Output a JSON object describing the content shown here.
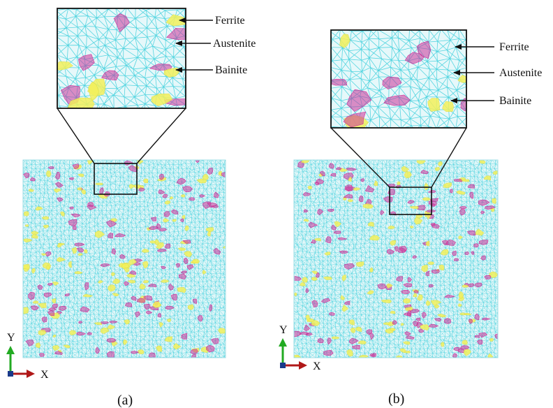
{
  "colors": {
    "ferrite": "#55d5e0",
    "austenite": "#cc3399",
    "bainite": "#f2f05a",
    "frame": "#222222",
    "axis_y": "#22aa22",
    "axis_x": "#b01818",
    "axis_origin": "#1a3a8a"
  },
  "panels": [
    {
      "id": "a",
      "caption": "(a)",
      "labels": {
        "ferrite": "Ferrite",
        "austenite": "Austenite",
        "bainite": "Bainite"
      },
      "axes": {
        "x": "X",
        "y": "Y"
      }
    },
    {
      "id": "b",
      "caption": "(b)",
      "labels": {
        "ferrite": "Ferrite",
        "austenite": "Austenite",
        "bainite": "Bainite"
      },
      "axes": {
        "x": "X",
        "y": "Y"
      }
    }
  ]
}
